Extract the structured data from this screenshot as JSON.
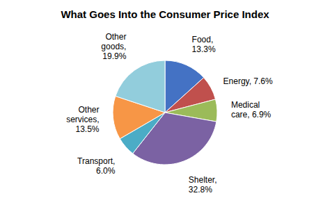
{
  "chart_data": {
    "type": "pie",
    "title": "What Goes Into the Consumer Price Index",
    "categories": [
      "Food,\n13.3%",
      "Energy, 7.6%",
      "Medical\ncare, 6.9%",
      "Shelter,\n32.8%",
      "Transport,\n6.0%",
      "Other\nservices,\n13.5%",
      "Other\ngoods,\n19.9%"
    ],
    "values": [
      13.3,
      7.6,
      6.9,
      32.8,
      6.0,
      13.5,
      19.9
    ],
    "colors": [
      "#4472C4",
      "#C0504D",
      "#9BBB59",
      "#7B62A3",
      "#4BACC6",
      "#F79646",
      "#92CDDC"
    ]
  }
}
